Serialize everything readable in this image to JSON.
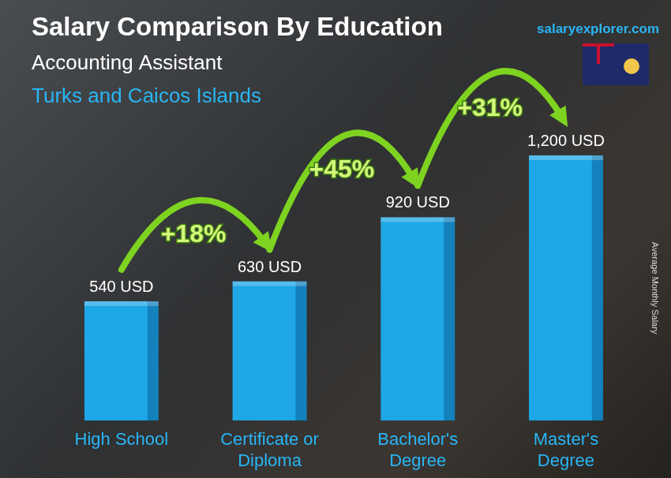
{
  "chart_data": {
    "type": "bar",
    "title": "Salary Comparison By Education",
    "subtitle": [
      "Accounting Assistant",
      "Turks and Caicos Islands"
    ],
    "source": "salaryexplorer.com",
    "y_label": "Average Monthly Salary",
    "categories": [
      "High School",
      "Certificate or Diploma",
      "Bachelor's Degree",
      "Master's Degree"
    ],
    "values": [
      540,
      630,
      920,
      1200
    ],
    "value_labels": [
      "540 USD",
      "630 USD",
      "920 USD",
      "1,200 USD"
    ],
    "annotations": [
      "+18%",
      "+45%",
      "+31%"
    ],
    "color": "#1ea7e6",
    "ylim": [
      0,
      1200
    ],
    "grid": false,
    "tick_labels": "x",
    "data_labels": true
  }
}
